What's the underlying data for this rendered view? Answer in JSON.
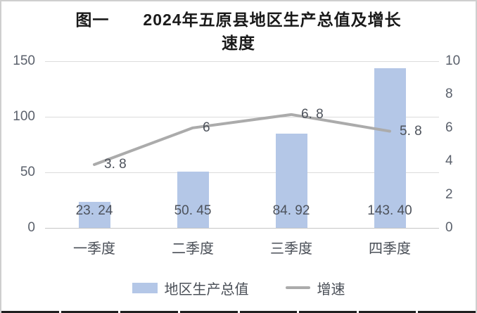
{
  "colors": {
    "bar": "#b4c7e7",
    "line": "#ababab",
    "grid": "#dcdcdc",
    "axis_line": "#c6c6c6",
    "axis_text": "#5b616c",
    "data_label": "#4d525b",
    "category_label": "#4a4f57",
    "title": "#1a1a1a",
    "legend_text": "#4a4f57",
    "table_border": "#1f1f1f",
    "page_border": "#cfcfcf"
  },
  "chart_data": {
    "type": "combo",
    "title": "图一 2024年五原县地区生产总值及增长速度",
    "title_lines": [
      "图一　　2024年五原县地区生产总值及增长",
      "速度"
    ],
    "categories": [
      "一季度",
      "二季度",
      "三季度",
      "四季度"
    ],
    "series": [
      {
        "name": "地区生产总值",
        "type": "bar",
        "axis": "left",
        "color": "#b4c7e7",
        "values": [
          23.24,
          50.45,
          84.92,
          143.4
        ],
        "labels": [
          "23. 24",
          "50. 45",
          "84. 92",
          "143. 40"
        ]
      },
      {
        "name": "增速",
        "type": "line",
        "axis": "right",
        "color": "#ababab",
        "values": [
          3.8,
          6.0,
          6.8,
          5.8
        ],
        "labels": [
          "3. 8",
          "6",
          "6. 8",
          "5. 8"
        ]
      }
    ],
    "left_axis": {
      "min": 0,
      "max": 150,
      "ticks": [
        0,
        50,
        100,
        150
      ],
      "tick_labels": [
        "0",
        "50",
        "100",
        "150"
      ]
    },
    "right_axis": {
      "min": 0,
      "max": 10,
      "ticks": [
        0,
        2,
        4,
        6,
        8,
        10
      ],
      "tick_labels": [
        "0",
        "2",
        "4",
        "6",
        "8",
        "10"
      ]
    },
    "grid": true,
    "legend_position": "bottom"
  },
  "bottom_table": {
    "columns": 8
  }
}
